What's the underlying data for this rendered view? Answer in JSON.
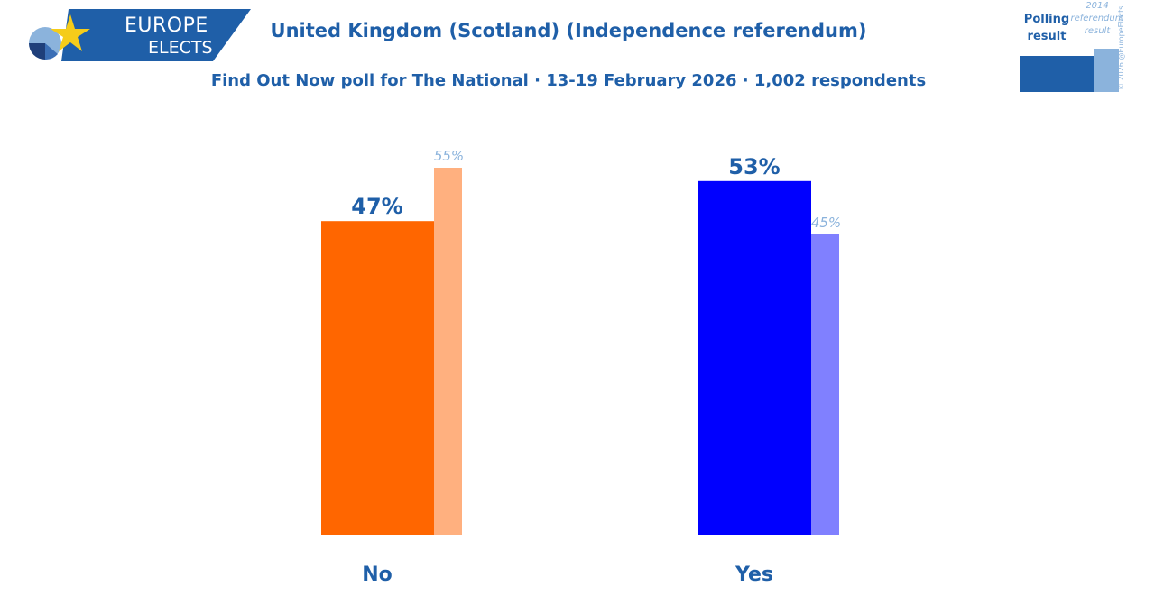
{
  "brand": {
    "line1": "EUROPE",
    "line2": "ELECTS"
  },
  "title": "United Kingdom (Scotland) (Independence referendum)",
  "subtitle": "Find Out Now poll for The National · 13-19 February 2026 · 1,002 respondents",
  "legend": {
    "poll_label": "Polling result",
    "ref_label": "2014 referendum result",
    "poll_color": "#1f5fa8",
    "ref_color": "#8bb3dc"
  },
  "copyright": "© 2026 @EuropeElects",
  "chart_data": {
    "type": "bar",
    "categories": [
      "No",
      "Yes"
    ],
    "series": [
      {
        "name": "Polling result",
        "values": [
          47,
          53
        ],
        "colors": [
          "#ff6600",
          "#0000ff"
        ]
      },
      {
        "name": "2014 referendum result",
        "values": [
          55,
          45
        ],
        "colors": [
          "#ffb07f",
          "#8080ff"
        ]
      }
    ],
    "value_suffix": "%",
    "title": "United Kingdom (Scotland) (Independence referendum)",
    "subtitle": "Find Out Now poll for The National · 13-19 February 2026 · 1,002 respondents",
    "ylim": [
      0,
      60
    ],
    "grid": false,
    "legend_position": "top-right"
  }
}
